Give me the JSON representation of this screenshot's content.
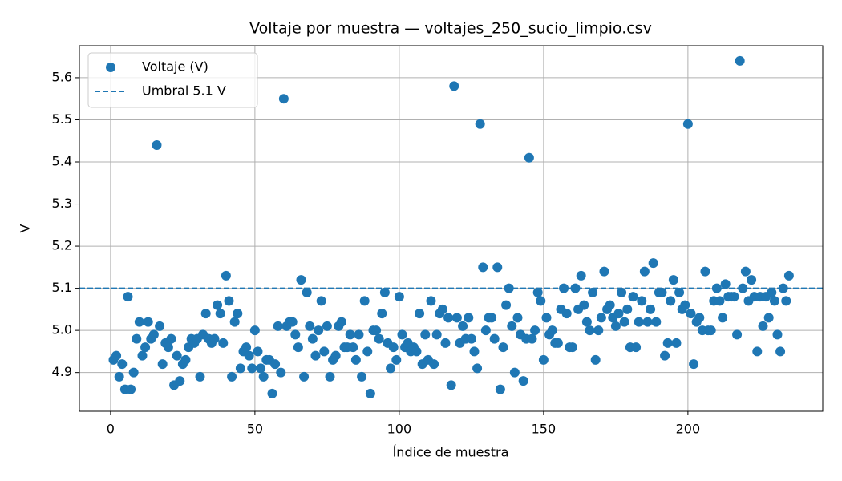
{
  "chart_data": {
    "type": "scatter",
    "title": "Voltaje por muestra — voltajes_250_sucio_limpio.csv",
    "x_label": "Índice de muestra",
    "y_label": "V",
    "x": [
      1,
      2,
      3,
      4,
      5,
      6,
      7,
      8,
      9,
      10,
      11,
      12,
      13,
      14,
      15,
      16,
      17,
      18,
      19,
      20,
      21,
      22,
      23,
      24,
      25,
      26,
      27,
      28,
      29,
      30,
      31,
      32,
      33,
      34,
      35,
      36,
      37,
      38,
      39,
      40,
      41,
      42,
      43,
      44,
      45,
      46,
      47,
      48,
      49,
      50,
      51,
      52,
      53,
      54,
      55,
      56,
      57,
      58,
      59,
      60,
      61,
      62,
      63,
      64,
      65,
      66,
      67,
      68,
      69,
      70,
      71,
      72,
      73,
      74,
      75,
      76,
      77,
      78,
      79,
      80,
      81,
      82,
      83,
      84,
      85,
      86,
      87,
      88,
      89,
      90,
      91,
      92,
      93,
      94,
      95,
      96,
      97,
      98,
      99,
      100,
      101,
      102,
      103,
      104,
      105,
      106,
      107,
      108,
      109,
      110,
      111,
      112,
      113,
      114,
      115,
      116,
      117,
      118,
      119,
      120,
      121,
      122,
      123,
      124,
      125,
      126,
      127,
      128,
      129,
      130,
      131,
      132,
      133,
      134,
      135,
      136,
      137,
      138,
      139,
      140,
      141,
      142,
      143,
      144,
      145,
      146,
      147,
      148,
      149,
      150,
      151,
      152,
      153,
      154,
      155,
      156,
      157,
      158,
      159,
      160,
      161,
      162,
      163,
      164,
      165,
      166,
      167,
      168,
      169,
      170,
      171,
      172,
      173,
      174,
      175,
      176,
      177,
      178,
      179,
      180,
      181,
      182,
      183,
      184,
      185,
      186,
      187,
      188,
      189,
      190,
      191,
      192,
      193,
      194,
      195,
      196,
      197,
      198,
      199,
      200,
      201,
      202,
      203,
      204,
      205,
      206,
      207,
      208,
      209,
      210,
      211,
      212,
      213,
      214,
      215,
      216,
      217,
      218,
      219,
      220,
      221,
      222,
      223,
      224,
      225,
      226,
      227,
      228,
      229,
      230,
      231,
      232,
      233,
      234,
      235
    ],
    "series": [
      {
        "name": "Voltaje (V)",
        "color": "#1f77b4",
        "values": [
          4.93,
          4.94,
          4.89,
          4.92,
          4.86,
          5.08,
          4.86,
          4.9,
          4.98,
          5.02,
          4.94,
          4.96,
          5.02,
          4.98,
          4.99,
          5.44,
          5.01,
          4.92,
          4.97,
          4.96,
          4.98,
          4.87,
          4.94,
          4.88,
          4.92,
          4.93,
          4.96,
          4.98,
          4.97,
          4.98,
          4.89,
          4.99,
          5.04,
          4.98,
          4.97,
          4.98,
          5.06,
          5.04,
          4.97,
          5.13,
          5.07,
          4.89,
          5.02,
          5.04,
          4.91,
          4.95,
          4.96,
          4.94,
          4.91,
          5.0,
          4.95,
          4.91,
          4.89,
          4.93,
          4.93,
          4.85,
          4.92,
          5.01,
          4.9,
          5.55,
          5.01,
          5.02,
          5.02,
          4.99,
          4.96,
          5.12,
          4.89,
          5.09,
          5.01,
          4.98,
          4.94,
          5.0,
          5.07,
          4.95,
          5.01,
          4.89,
          4.93,
          4.94,
          5.01,
          5.02,
          4.96,
          4.96,
          4.99,
          4.96,
          4.93,
          4.99,
          4.89,
          5.07,
          4.95,
          4.85,
          5.0,
          5.0,
          4.98,
          5.04,
          5.09,
          4.97,
          4.91,
          4.96,
          4.93,
          5.08,
          4.99,
          4.96,
          4.97,
          4.95,
          4.96,
          4.95,
          5.04,
          4.92,
          4.99,
          4.93,
          5.07,
          4.92,
          4.99,
          5.04,
          5.05,
          4.97,
          5.03,
          4.87,
          5.58,
          5.03,
          4.97,
          5.01,
          4.98,
          5.03,
          4.98,
          4.95,
          4.91,
          5.49,
          5.15,
          5.0,
          5.03,
          5.03,
          4.98,
          5.15,
          4.86,
          4.96,
          5.06,
          5.1,
          5.01,
          4.9,
          5.03,
          4.99,
          4.88,
          4.98,
          5.41,
          4.98,
          5.0,
          5.09,
          5.07,
          4.93,
          5.03,
          4.99,
          5.0,
          4.97,
          4.97,
          5.05,
          5.1,
          5.04,
          4.96,
          4.96,
          5.1,
          5.05,
          5.13,
          5.06,
          5.02,
          5.0,
          5.09,
          4.93,
          5.0,
          5.03,
          5.14,
          5.05,
          5.06,
          5.03,
          5.01,
          5.04,
          5.09,
          5.02,
          5.05,
          4.96,
          5.08,
          4.96,
          5.02,
          5.07,
          5.14,
          5.02,
          5.05,
          5.16,
          5.02,
          5.09,
          5.09,
          4.94,
          4.97,
          5.07,
          5.12,
          4.97,
          5.09,
          5.05,
          5.06,
          5.49,
          5.04,
          4.92,
          5.02,
          5.03,
          5.0,
          5.14,
          5.0,
          5.0,
          5.07,
          5.1,
          5.07,
          5.03,
          5.11,
          5.08,
          5.08,
          5.08,
          4.99,
          5.64,
          5.1,
          5.14,
          5.07,
          5.12,
          5.08,
          4.95,
          5.08,
          5.01,
          5.08,
          5.03,
          5.09,
          5.07,
          4.99,
          4.95,
          5.1,
          5.07,
          5.13
        ]
      }
    ],
    "threshold": {
      "label": "Umbral 5.1 V",
      "value": 5.1,
      "color": "#1f77b4"
    },
    "xlim": [
      -10.8,
      246.7
    ],
    "ylim": [
      4.808,
      5.676
    ],
    "xticks": [
      0,
      50,
      100,
      150,
      200
    ],
    "yticks": [
      4.9,
      {
        "value": 5,
        "label": "5.0"
      },
      5.1,
      5.2,
      5.3,
      5.4,
      5.5,
      5.6
    ],
    "grid": true,
    "legend": "upper left"
  }
}
